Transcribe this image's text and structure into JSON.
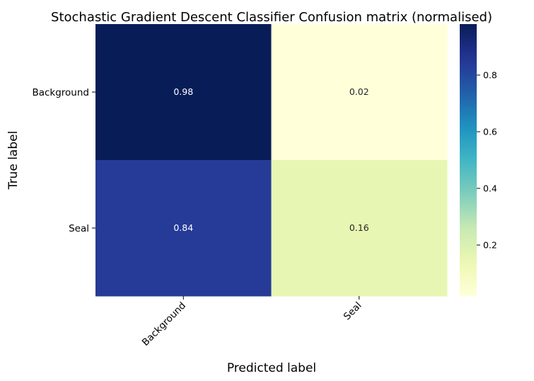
{
  "chart_data": {
    "type": "heatmap",
    "title": "Stochastic Gradient Descent Classifier Confusion matrix (normalised)",
    "xlabel": "Predicted label",
    "ylabel": "True label",
    "x_categories": [
      "Background",
      "Seal"
    ],
    "y_categories": [
      "Background",
      "Seal"
    ],
    "values": [
      [
        0.98,
        0.02
      ],
      [
        0.84,
        0.16
      ]
    ],
    "cell_labels": [
      [
        "0.98",
        "0.02"
      ],
      [
        "0.84",
        "0.16"
      ]
    ],
    "colormap": "YlGnBu",
    "colorbar": {
      "range": [
        0.02,
        0.98
      ],
      "ticks": [
        0.2,
        0.4,
        0.6,
        0.8
      ],
      "tick_labels": [
        "0.2",
        "0.4",
        "0.6",
        "0.8"
      ]
    },
    "grid": false,
    "legend": "colorbar-right"
  }
}
